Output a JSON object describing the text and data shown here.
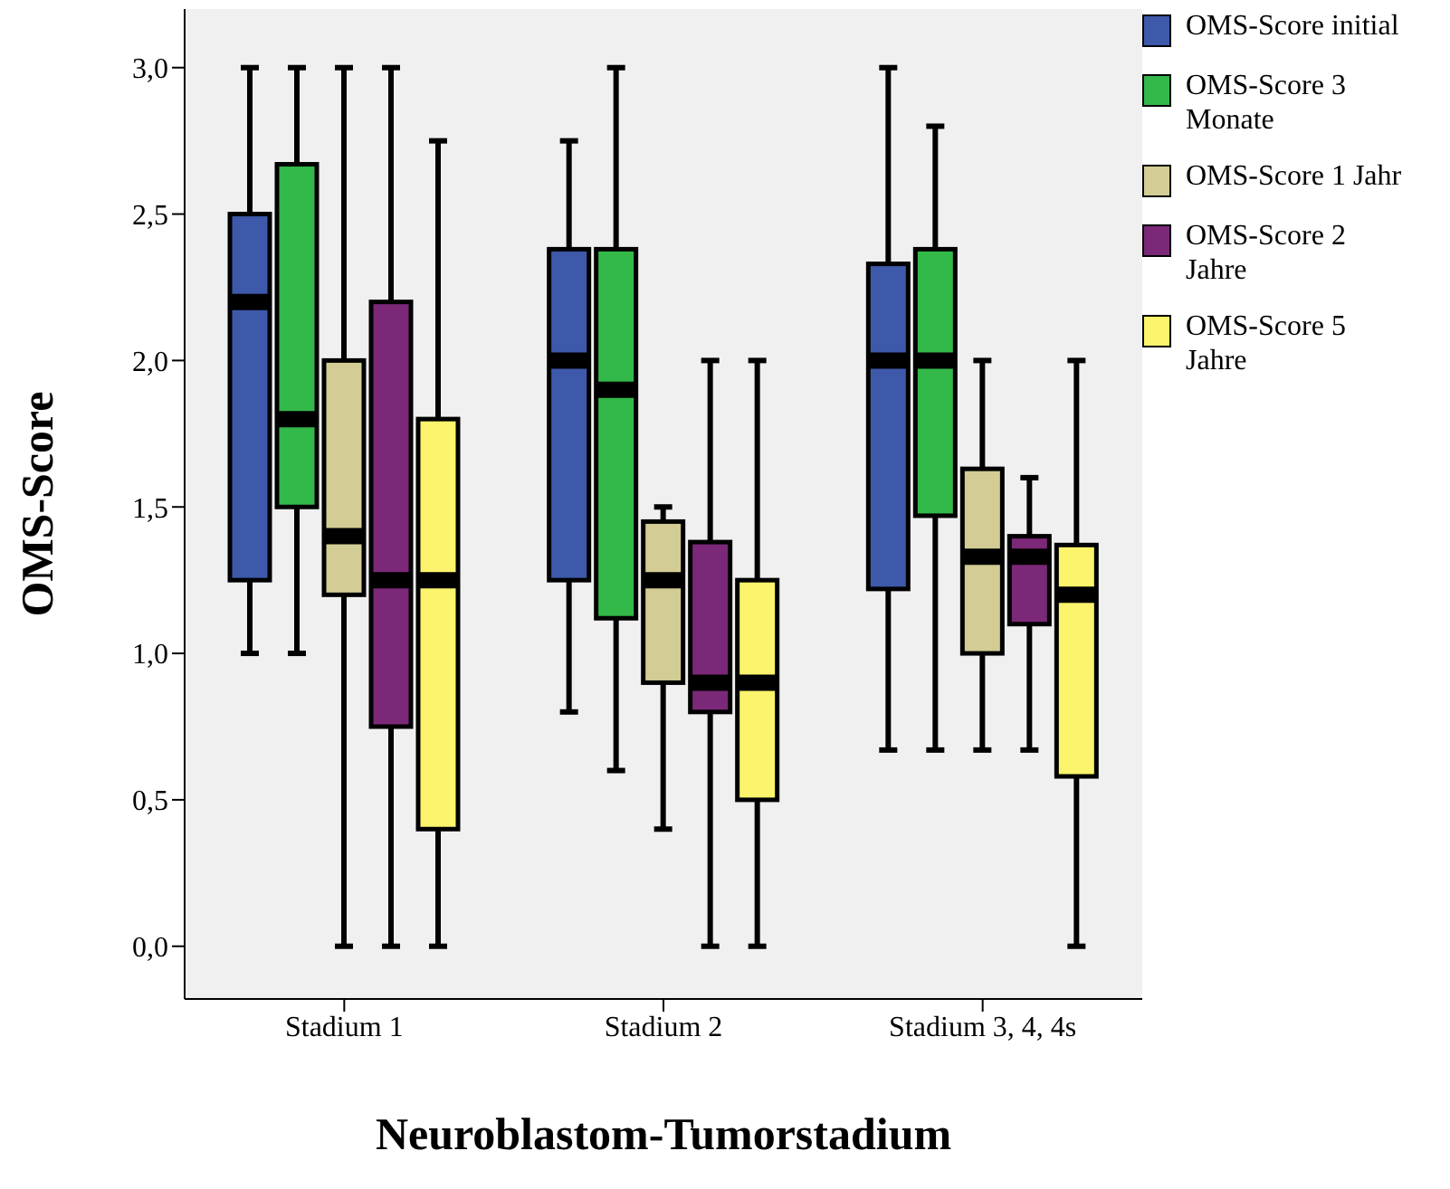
{
  "chart_data": {
    "type": "box",
    "xlabel": "Neuroblastom-Tumorstadium",
    "ylabel": "OMS-Score",
    "categories": [
      "Stadium 1",
      "Stadium 2",
      "Stadium 3, 4, 4s"
    ],
    "ylim": [
      -0.18,
      3.2
    ],
    "yticks": [
      {
        "value": 0,
        "label": "0,0"
      },
      {
        "value": 0.5,
        "label": "0,5"
      },
      {
        "value": 1,
        "label": "1,0"
      },
      {
        "value": 1.5,
        "label": "1,5"
      },
      {
        "value": 2,
        "label": "2,0"
      },
      {
        "value": 2.5,
        "label": "2,5"
      },
      {
        "value": 3,
        "label": "3,0"
      }
    ],
    "legend": "right",
    "grid": false,
    "series": [
      {
        "name": "OMS-Score initial",
        "color": "#3e59aa",
        "boxes": [
          {
            "low": 1.0,
            "q1": 1.25,
            "median": 2.2,
            "q3": 2.5,
            "high": 3.0
          },
          {
            "low": 0.8,
            "q1": 1.25,
            "median": 2.0,
            "q3": 2.38,
            "high": 2.75
          },
          {
            "low": 0.67,
            "q1": 1.22,
            "median": 2.0,
            "q3": 2.33,
            "high": 3.0
          }
        ]
      },
      {
        "name": "OMS-Score 3 Monate",
        "color": "#33b84a",
        "boxes": [
          {
            "low": 1.0,
            "q1": 1.5,
            "median": 1.8,
            "q3": 2.67,
            "high": 3.0
          },
          {
            "low": 0.6,
            "q1": 1.12,
            "median": 1.9,
            "q3": 2.38,
            "high": 3.0
          },
          {
            "low": 0.67,
            "q1": 1.47,
            "median": 2.0,
            "q3": 2.38,
            "high": 2.8
          }
        ]
      },
      {
        "name": "OMS-Score 1 Jahr",
        "color": "#d3cd95",
        "boxes": [
          {
            "low": 0,
            "q1": 1.2,
            "median": 1.4,
            "q3": 2.0,
            "high": 3.0
          },
          {
            "low": 0.4,
            "q1": 0.9,
            "median": 1.25,
            "q3": 1.45,
            "high": 1.5
          },
          {
            "low": 0.67,
            "q1": 1.0,
            "median": 1.33,
            "q3": 1.63,
            "high": 2.0
          }
        ]
      },
      {
        "name": "OMS-Score 2 Jahre",
        "color": "#7b2878",
        "boxes": [
          {
            "low": 0,
            "q1": 0.75,
            "median": 1.25,
            "q3": 2.2,
            "high": 3.0
          },
          {
            "low": 0,
            "q1": 0.8,
            "median": 0.9,
            "q3": 1.38,
            "high": 2.0
          },
          {
            "low": 0.67,
            "q1": 1.1,
            "median": 1.33,
            "q3": 1.4,
            "high": 1.6
          }
        ]
      },
      {
        "name": "OMS-Score 5 Jahre",
        "color": "#fbf46c",
        "boxes": [
          {
            "low": 0,
            "q1": 0.4,
            "median": 1.25,
            "q3": 1.8,
            "high": 2.75
          },
          {
            "low": 0,
            "q1": 0.5,
            "median": 0.9,
            "q3": 1.25,
            "high": 2.0
          },
          {
            "low": 0,
            "q1": 0.58,
            "median": 1.2,
            "q3": 1.37,
            "high": 2.0
          }
        ]
      }
    ]
  }
}
